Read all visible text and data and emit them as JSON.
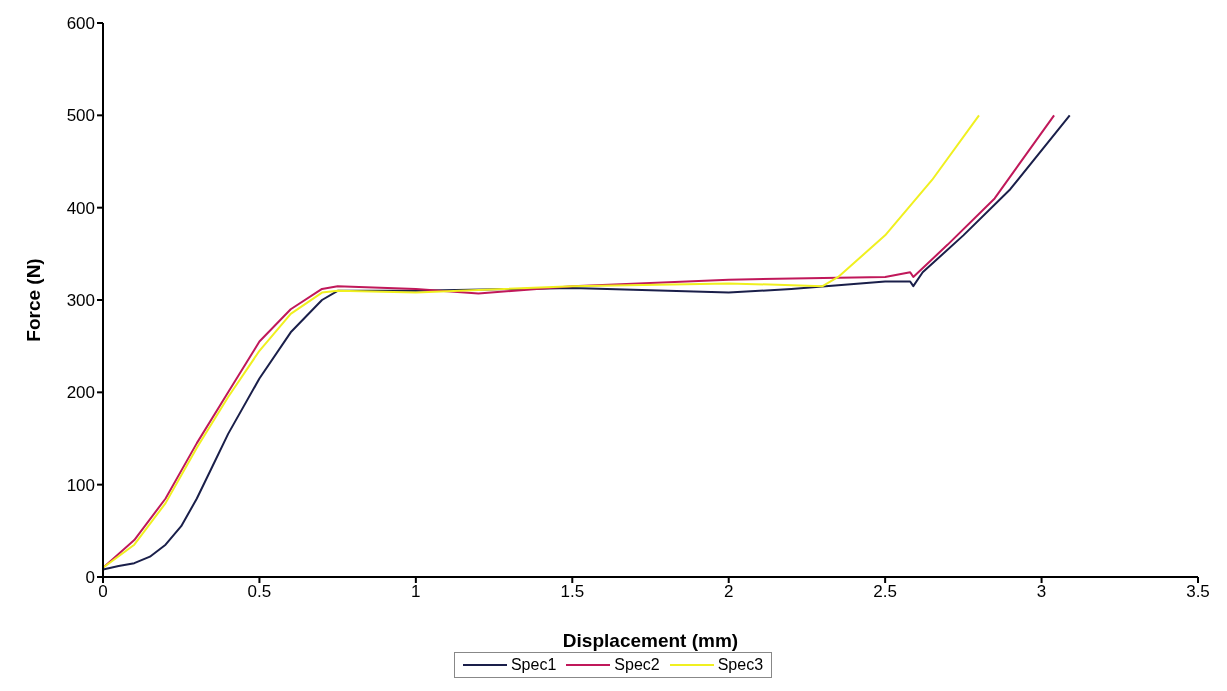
{
  "chart_data": {
    "type": "line",
    "xlabel": "Displacement (mm)",
    "ylabel": "Force (N)",
    "xlim": [
      0,
      3.5
    ],
    "xticks": [
      0,
      0.5,
      1,
      1.5,
      2,
      2.5,
      3,
      3.5
    ],
    "ylim": [
      0,
      600
    ],
    "yticks": [
      0,
      100,
      200,
      300,
      400,
      500,
      600
    ],
    "grid": false,
    "legend": "bottom",
    "marker": "none",
    "line_style": "solid",
    "series": [
      {
        "name": "Spec1",
        "color": "#1a1f4a",
        "x": [
          0,
          0.05,
          0.1,
          0.15,
          0.2,
          0.25,
          0.3,
          0.35,
          0.4,
          0.5,
          0.6,
          0.7,
          0.75,
          1,
          1.5,
          2,
          2.2,
          2.5,
          2.58,
          2.59,
          2.62,
          2.75,
          2.9,
          3.09
        ],
        "values": [
          8,
          12,
          15,
          22,
          35,
          55,
          85,
          120,
          155,
          215,
          265,
          300,
          310,
          310,
          313,
          308,
          312,
          320,
          320,
          315,
          330,
          370,
          420,
          500
        ]
      },
      {
        "name": "Spec2",
        "color": "#c0185a",
        "x": [
          0,
          0.1,
          0.2,
          0.3,
          0.4,
          0.5,
          0.6,
          0.7,
          0.75,
          1,
          1.2,
          1.5,
          2,
          2.5,
          2.58,
          2.59,
          2.7,
          2.85,
          3.04
        ],
        "values": [
          10,
          40,
          85,
          145,
          200,
          255,
          290,
          312,
          315,
          312,
          307,
          315,
          322,
          325,
          330,
          325,
          360,
          410,
          500
        ]
      },
      {
        "name": "Spec3",
        "color": "#f0f020",
        "x": [
          0,
          0.1,
          0.2,
          0.3,
          0.4,
          0.5,
          0.6,
          0.7,
          0.75,
          1,
          1.5,
          2,
          2.3,
          2.35,
          2.5,
          2.65,
          2.8
        ],
        "values": [
          10,
          35,
          80,
          140,
          195,
          245,
          285,
          308,
          310,
          308,
          315,
          318,
          315,
          325,
          370,
          430,
          500
        ]
      }
    ]
  }
}
